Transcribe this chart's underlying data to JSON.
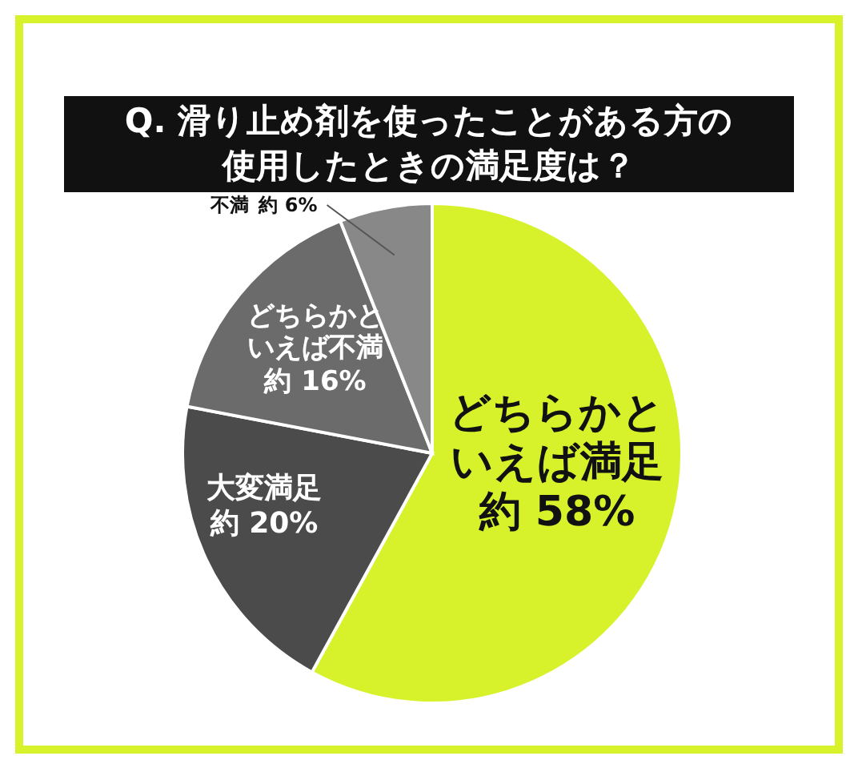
{
  "chart_data": {
    "type": "pie",
    "title": "Q. 滑り止め剤を使ったことがある方の使用したときの満足度は？",
    "categories": [
      "どちらかといえば満足",
      "大変満足",
      "どちらかといえば不満",
      "不満"
    ],
    "values": [
      58,
      20,
      16,
      6
    ],
    "colors": [
      "#d7f22b",
      "#4b4b4b",
      "#6b6b6b",
      "#888888"
    ],
    "value_labels": [
      "約 58%",
      "約 20%",
      "約 16%",
      "約 6%"
    ],
    "legend": false
  }
}
